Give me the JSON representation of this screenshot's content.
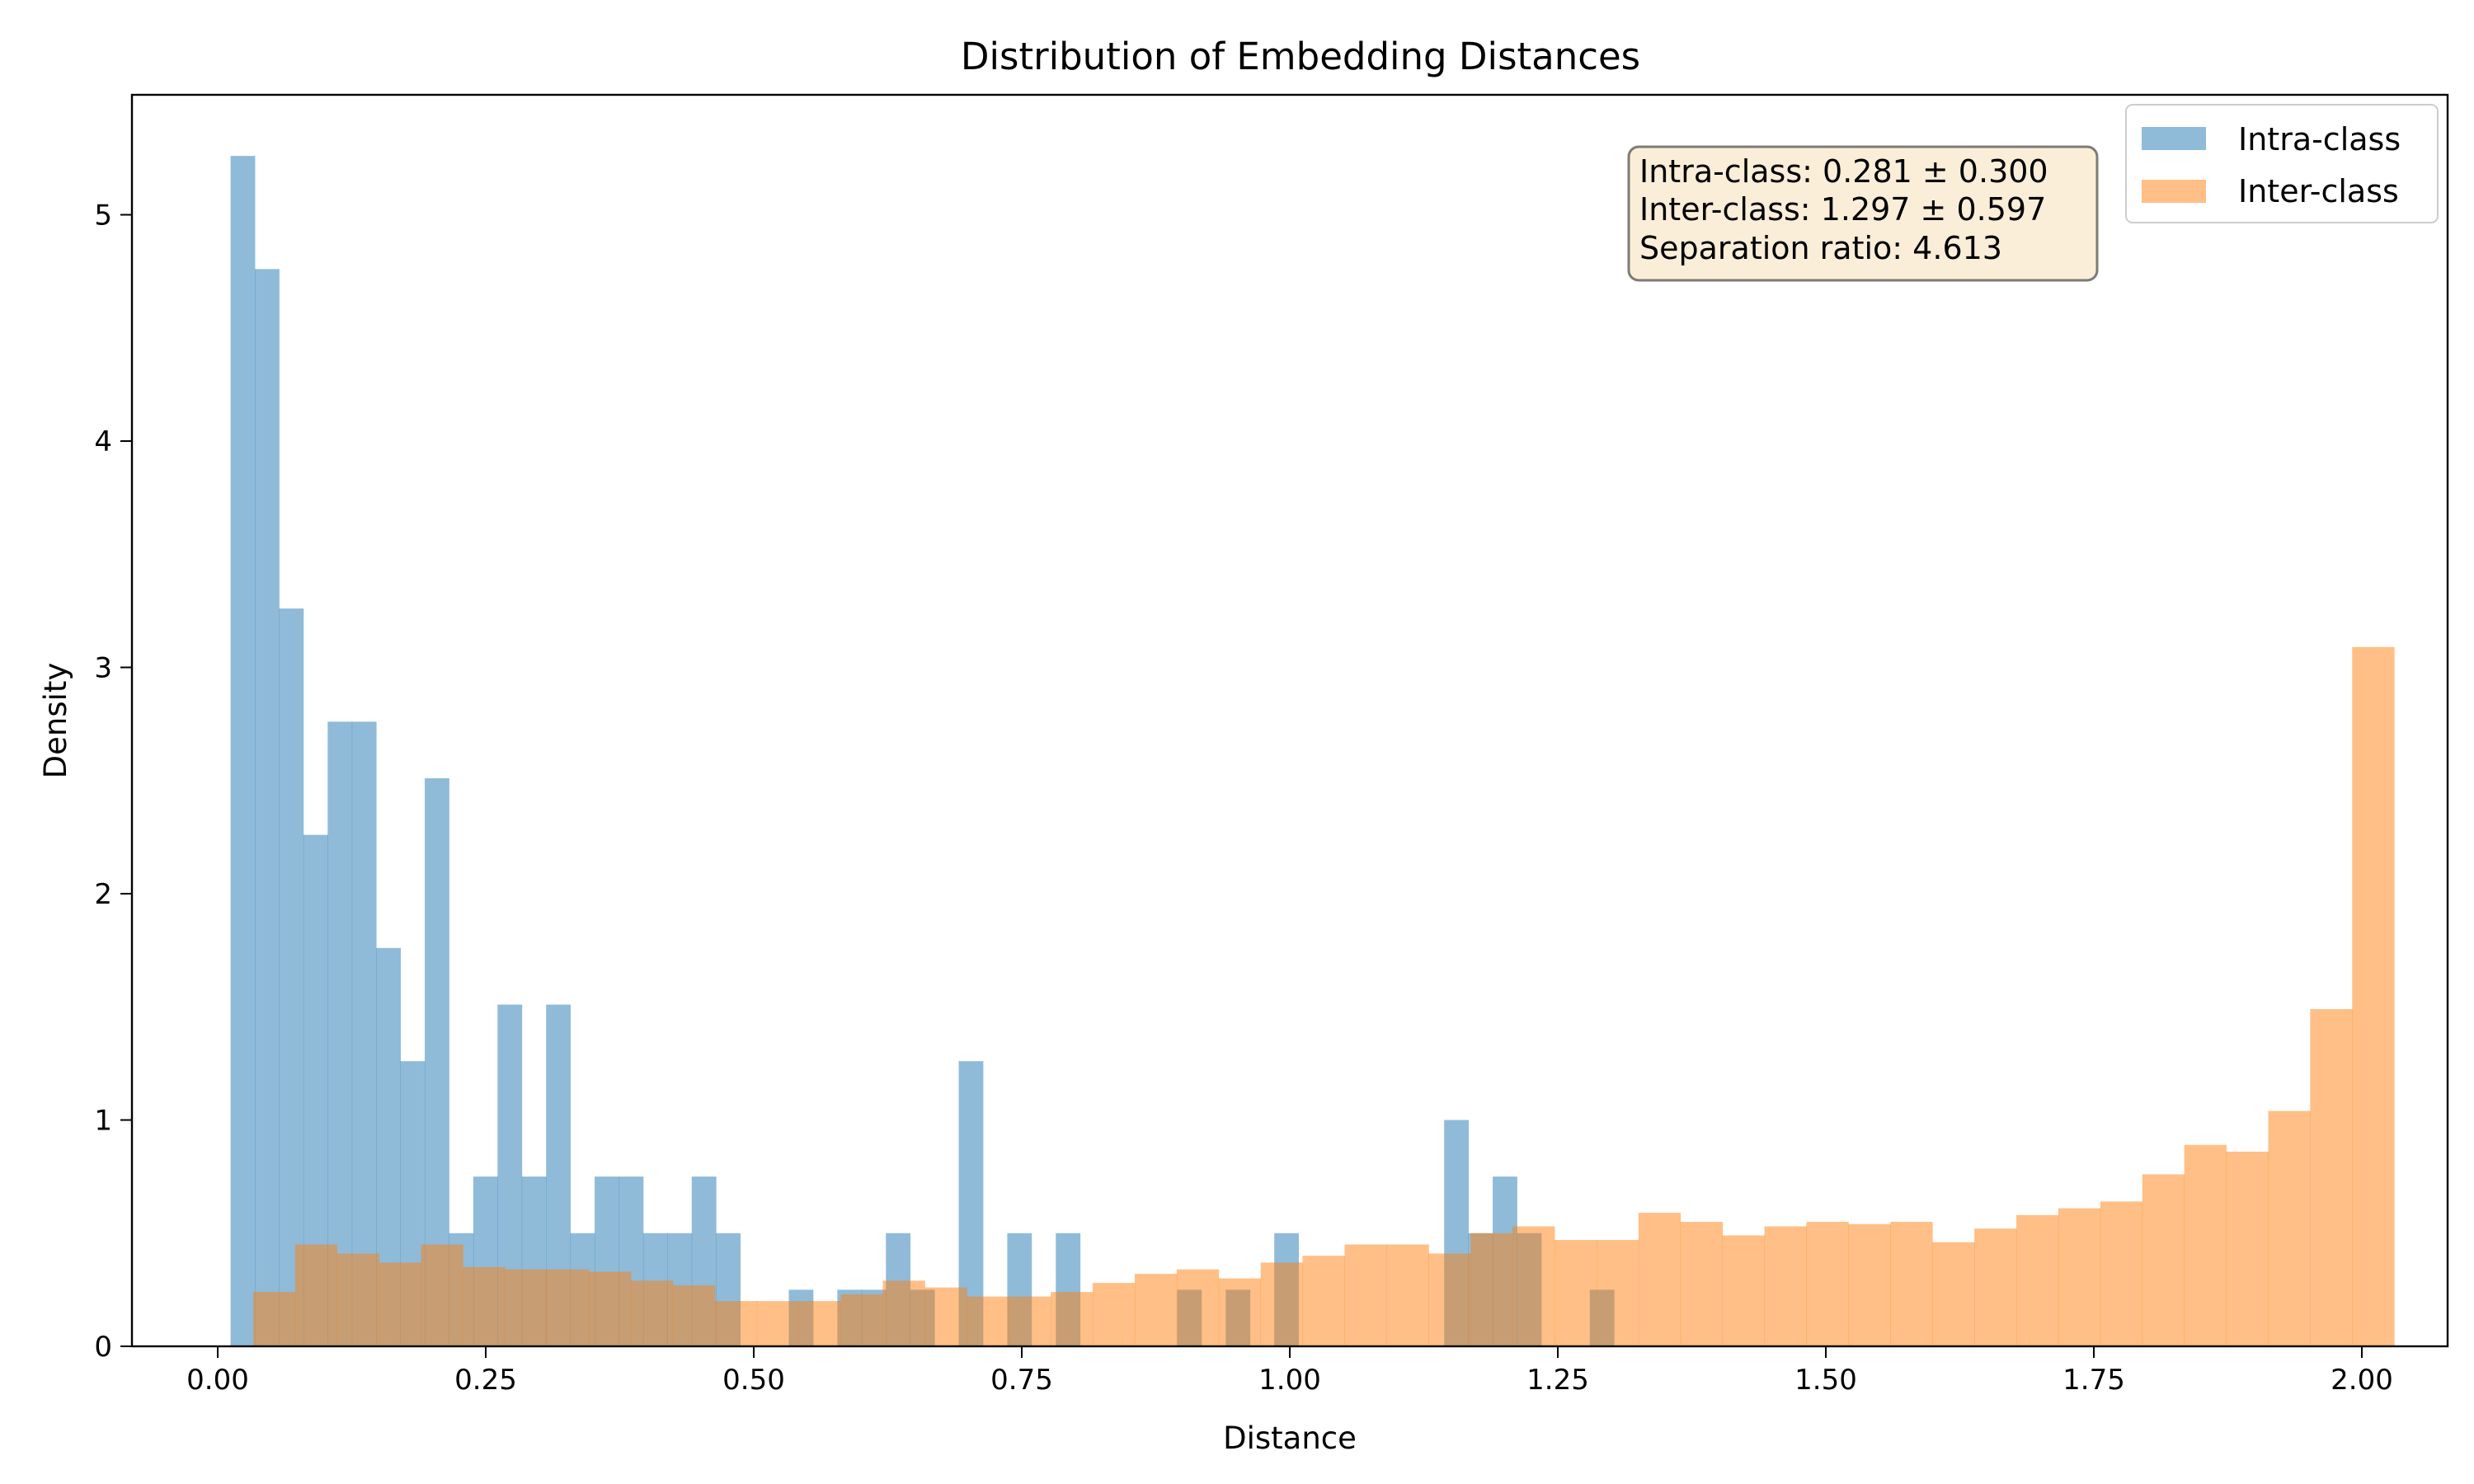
{
  "chart_data": {
    "type": "bar",
    "histogram": true,
    "title": "Distribution of Embedding Distances",
    "xlabel": "Distance",
    "ylabel": "Density",
    "xlim": [
      -0.08,
      2.08
    ],
    "ylim": [
      0,
      5.53
    ],
    "x_ticks": [
      {
        "value": 0.0,
        "label": "0.00"
      },
      {
        "value": 0.25,
        "label": "0.25"
      },
      {
        "value": 0.5,
        "label": "0.50"
      },
      {
        "value": 0.75,
        "label": "0.75"
      },
      {
        "value": 1.0,
        "label": "1.00"
      },
      {
        "value": 1.25,
        "label": "1.25"
      },
      {
        "value": 1.5,
        "label": "1.50"
      },
      {
        "value": 1.75,
        "label": "1.75"
      },
      {
        "value": 2.0,
        "label": "2.00"
      }
    ],
    "y_ticks": [
      {
        "value": 0,
        "label": "0"
      },
      {
        "value": 1,
        "label": "1"
      },
      {
        "value": 2,
        "label": "2"
      },
      {
        "value": 3,
        "label": "3"
      },
      {
        "value": 4,
        "label": "4"
      },
      {
        "value": 5,
        "label": "5"
      }
    ],
    "grid": false,
    "legend_position": "top-right",
    "series": [
      {
        "name": "Intra-class",
        "color": "#1f77b4",
        "alpha": 0.5,
        "bin_start": 0.012,
        "bin_width": 0.02264,
        "values": [
          5.26,
          4.76,
          3.26,
          2.26,
          2.76,
          2.76,
          1.76,
          1.26,
          2.51,
          0.5,
          0.75,
          1.51,
          0.75,
          1.51,
          0.5,
          0.75,
          0.75,
          0.5,
          0.5,
          0.75,
          0.5,
          0,
          0,
          0.25,
          0,
          0.25,
          0.25,
          0.5,
          0.25,
          0,
          1.26,
          0,
          0.5,
          0,
          0.5,
          0,
          0,
          0,
          0,
          0.25,
          0,
          0.25,
          0,
          0.5,
          0,
          0,
          0,
          0,
          0,
          0,
          1.0,
          0.5,
          0.75,
          0.5,
          0,
          0,
          0.25
        ]
      },
      {
        "name": "Inter-class",
        "color": "#ff7f0e",
        "alpha": 0.5,
        "bin_start": 0.033,
        "bin_width": 0.03916,
        "values": [
          0.24,
          0.45,
          0.41,
          0.37,
          0.45,
          0.35,
          0.34,
          0.34,
          0.33,
          0.29,
          0.27,
          0.2,
          0.2,
          0.2,
          0.23,
          0.29,
          0.26,
          0.22,
          0.22,
          0.24,
          0.28,
          0.32,
          0.34,
          0.3,
          0.37,
          0.4,
          0.45,
          0.45,
          0.41,
          0.5,
          0.53,
          0.47,
          0.47,
          0.59,
          0.55,
          0.49,
          0.53,
          0.55,
          0.54,
          0.55,
          0.46,
          0.52,
          0.58,
          0.61,
          0.64,
          0.76,
          0.89,
          0.86,
          1.04,
          1.49,
          3.09
        ]
      }
    ],
    "stats_box": [
      "Intra-class: 0.281 ± 0.300",
      "Inter-class: 1.297 ± 0.597",
      "Separation ratio: 4.613"
    ]
  }
}
